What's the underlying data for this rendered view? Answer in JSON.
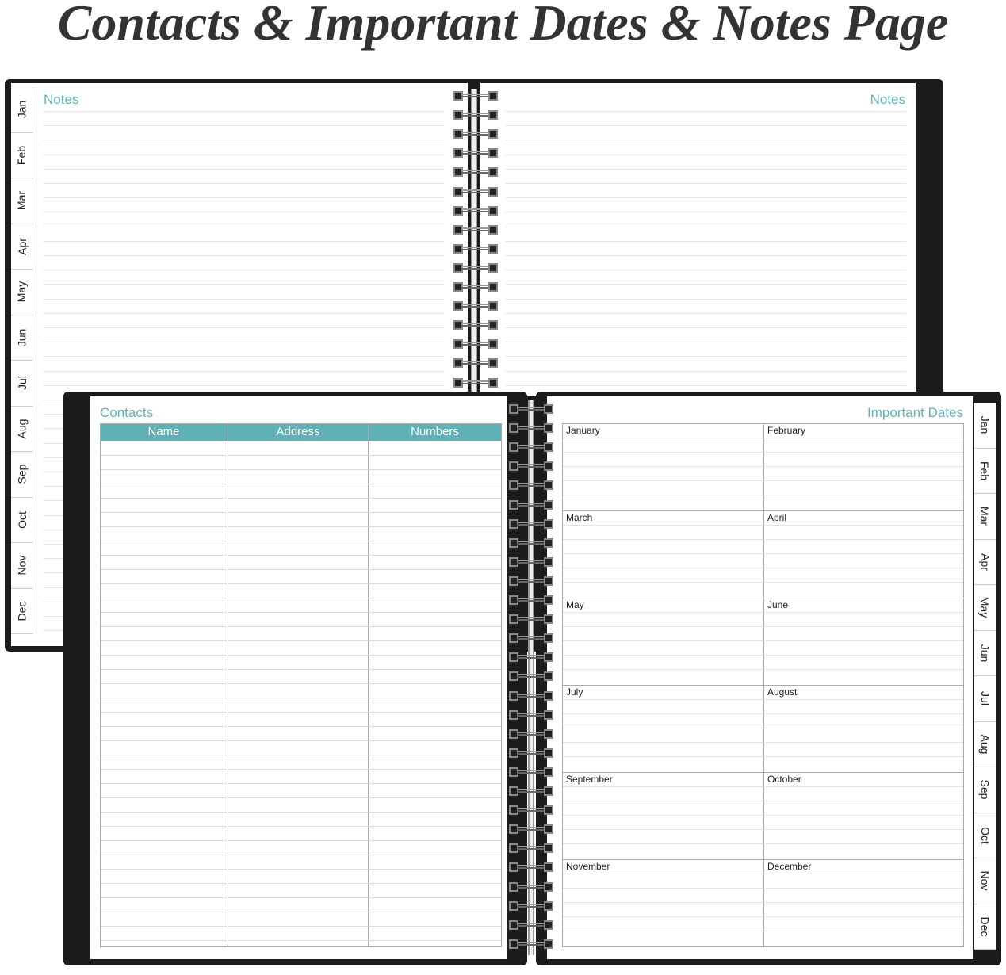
{
  "title": "Contacts & Important Dates & Notes Page",
  "months_short": [
    "Jan",
    "Feb",
    "Mar",
    "Apr",
    "May",
    "Jun",
    "Jul",
    "Aug",
    "Sep",
    "Oct",
    "Nov",
    "Dec"
  ],
  "notes": {
    "left_title": "Notes",
    "right_title": "Notes"
  },
  "contacts": {
    "title": "Contacts",
    "columns": [
      "Name",
      "Address",
      "Numbers"
    ]
  },
  "important_dates": {
    "title": "Important Dates",
    "months": [
      "January",
      "February",
      "March",
      "April",
      "May",
      "June",
      "July",
      "August",
      "September",
      "October",
      "November",
      "December"
    ]
  },
  "colors": {
    "accent": "#5fb1b5",
    "cover": "#1c1c1c"
  }
}
